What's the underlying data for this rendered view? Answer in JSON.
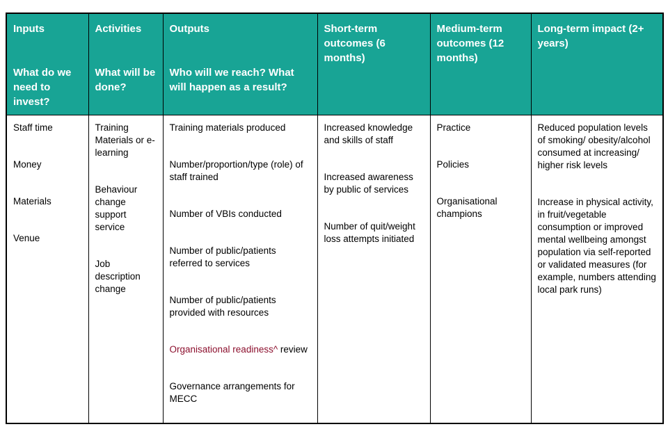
{
  "table": {
    "colors": {
      "header_bg": "#18a495",
      "header_text": "#ffffff",
      "body_text": "#000000",
      "accent_text": "#8c102e",
      "grid": "#000000"
    },
    "columns": [
      {
        "id": "inputs",
        "header": {
          "title": "Inputs",
          "question": "What do we need to invest?"
        },
        "items": [
          {
            "segments": [
              {
                "t": "Staff time"
              }
            ]
          },
          {
            "segments": [
              {
                "t": "Money"
              }
            ]
          },
          {
            "segments": [
              {
                "t": "Materials"
              }
            ]
          },
          {
            "segments": [
              {
                "t": "Venue"
              }
            ]
          }
        ]
      },
      {
        "id": "activities",
        "header": {
          "title": "Activities",
          "question": "What will be done?"
        },
        "items": [
          {
            "segments": [
              {
                "t": "Training Materials or e-learning"
              }
            ]
          },
          {
            "segments": [
              {
                "t": "Behaviour change support service"
              }
            ]
          },
          {
            "segments": [
              {
                "t": "Job description change"
              }
            ]
          }
        ]
      },
      {
        "id": "outputs",
        "header": {
          "title": "Outputs",
          "question": "Who will we reach? What will happen as a result?"
        },
        "items": [
          {
            "segments": [
              {
                "t": "Training materials produced"
              }
            ]
          },
          {
            "segments": [
              {
                "t": "Number/proportion/type (role) of staff trained"
              }
            ]
          },
          {
            "segments": [
              {
                "t": "Number of VBIs conducted"
              }
            ]
          },
          {
            "segments": [
              {
                "t": "Number of public/patients referred to services"
              }
            ]
          },
          {
            "segments": [
              {
                "t": "Number of public/patients provided with resources"
              }
            ]
          },
          {
            "segments": [
              {
                "t": "Organisational readiness^",
                "accent": true
              },
              {
                "t": " review"
              }
            ]
          },
          {
            "segments": [
              {
                "t": "Governance arrangements for MECC"
              }
            ]
          }
        ]
      },
      {
        "id": "short-term-outcomes",
        "header": {
          "title": "Short-term outcomes (6 months)"
        },
        "items": [
          {
            "segments": [
              {
                "t": "Increased knowledge and skills of staff"
              }
            ]
          },
          {
            "segments": [
              {
                "t": "Increased awareness by public of services"
              }
            ]
          },
          {
            "segments": [
              {
                "t": "Number of quit/weight loss attempts initiated"
              }
            ]
          }
        ]
      },
      {
        "id": "medium-term-outcomes",
        "header": {
          "title": "Medium-term outcomes (12 months)"
        },
        "items": [
          {
            "segments": [
              {
                "t": "Practice"
              }
            ]
          },
          {
            "segments": [
              {
                "t": "Policies"
              }
            ]
          },
          {
            "segments": [
              {
                "t": "Organisational champions"
              }
            ]
          }
        ]
      },
      {
        "id": "long-term-impact",
        "header": {
          "title": "Long-term impact (2+ years)"
        },
        "items": [
          {
            "segments": [
              {
                "t": "Reduced population levels of smoking/ obesity/alcohol consumed at increasing/ higher risk levels"
              }
            ]
          },
          {
            "segments": [
              {
                "t": "Increase in physical activity, in fruit/vegetable consumption or improved mental wellbeing amongst population via self-reported or validated measures (for example, numbers attending local park runs)"
              }
            ]
          }
        ]
      }
    ]
  }
}
